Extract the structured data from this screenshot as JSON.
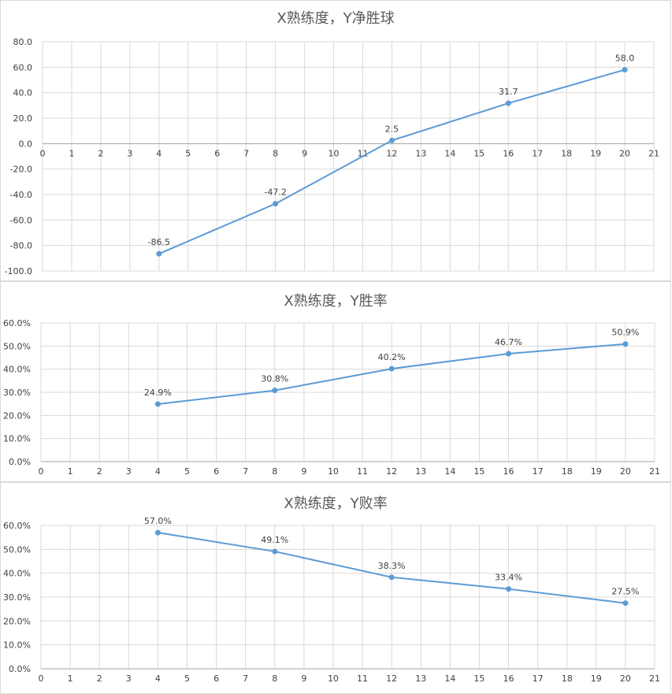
{
  "chart_data": [
    {
      "type": "line",
      "title": "X熟练度，Y净胜球",
      "x": [
        4,
        8,
        12,
        16,
        20
      ],
      "series": [
        {
          "values": [
            -86.5,
            -47.2,
            2.5,
            31.7,
            58.0
          ]
        }
      ],
      "data_labels": [
        "-86.5",
        "-47.2",
        "2.5",
        "31.7",
        "58.0"
      ],
      "xlim": [
        0,
        21
      ],
      "ylim": [
        -100,
        80
      ],
      "x_ticks": [
        "0",
        "1",
        "2",
        "3",
        "4",
        "5",
        "6",
        "7",
        "8",
        "9",
        "10",
        "11",
        "12",
        "13",
        "14",
        "15",
        "16",
        "17",
        "18",
        "19",
        "20",
        "21"
      ],
      "y_ticks": [
        "80.0",
        "60.0",
        "40.0",
        "20.0",
        "0.0",
        "-20.0",
        "-40.0",
        "-60.0",
        "-80.0",
        "-100.0"
      ],
      "grid": true,
      "line_color": "#5B9BD5"
    },
    {
      "type": "line",
      "title": "X熟练度，Y胜率",
      "x": [
        4,
        8,
        12,
        16,
        20
      ],
      "series": [
        {
          "values": [
            24.9,
            30.8,
            40.2,
            46.7,
            50.9
          ]
        }
      ],
      "data_labels": [
        "24.9%",
        "30.8%",
        "40.2%",
        "46.7%",
        "50.9%"
      ],
      "xlim": [
        0,
        21
      ],
      "ylim": [
        0,
        60
      ],
      "x_ticks": [
        "0",
        "1",
        "2",
        "3",
        "4",
        "5",
        "6",
        "7",
        "8",
        "9",
        "10",
        "11",
        "12",
        "13",
        "14",
        "15",
        "16",
        "17",
        "18",
        "19",
        "20",
        "21"
      ],
      "y_ticks": [
        "60.0%",
        "50.0%",
        "40.0%",
        "30.0%",
        "20.0%",
        "10.0%",
        "0.0%"
      ],
      "grid": true,
      "line_color": "#5B9BD5"
    },
    {
      "type": "line",
      "title": "X熟练度，Y败率",
      "x": [
        4,
        8,
        12,
        16,
        20
      ],
      "series": [
        {
          "values": [
            57.0,
            49.1,
            38.3,
            33.4,
            27.5
          ]
        }
      ],
      "data_labels": [
        "57.0%",
        "49.1%",
        "38.3%",
        "33.4%",
        "27.5%"
      ],
      "xlim": [
        0,
        21
      ],
      "ylim": [
        0,
        60
      ],
      "x_ticks": [
        "0",
        "1",
        "2",
        "3",
        "4",
        "5",
        "6",
        "7",
        "8",
        "9",
        "10",
        "11",
        "12",
        "13",
        "14",
        "15",
        "16",
        "17",
        "18",
        "19",
        "20",
        "21"
      ],
      "y_ticks": [
        "60.0%",
        "50.0%",
        "40.0%",
        "30.0%",
        "20.0%",
        "10.0%",
        "0.0%"
      ],
      "grid": true,
      "line_color": "#5B9BD5"
    }
  ]
}
